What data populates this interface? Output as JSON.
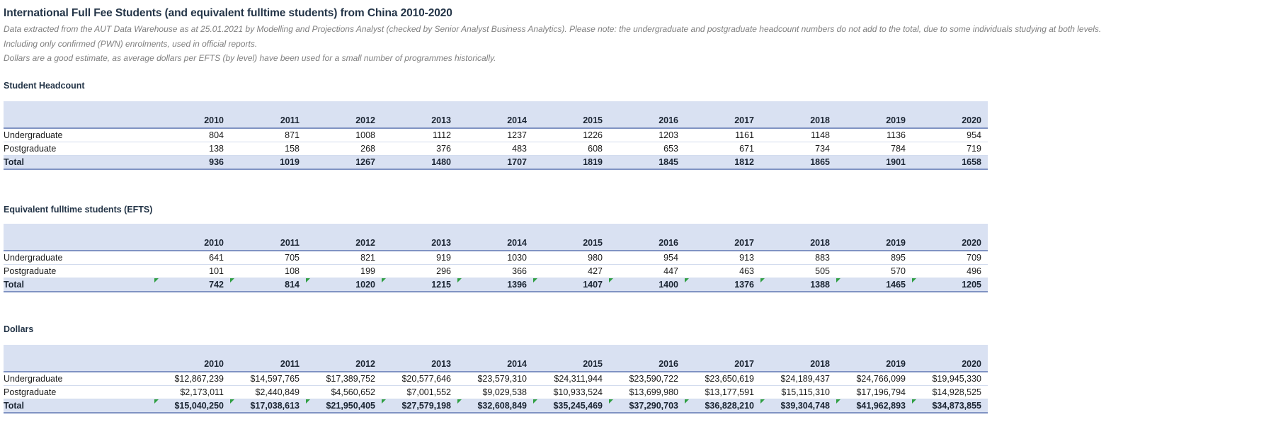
{
  "report": {
    "title": "International Full Fee Students (and equivalent fulltime students) from China 2010-2020",
    "note_lines": [
      "Data extracted from the AUT Data Warehouse as at 25.01.2021 by Modelling and Projections Analyst (checked by Senior Analyst Business Analytics). Please note: the undergraduate and postgraduate headcount numbers do not add to the total, due to some individuals studying at both levels.",
      "Including only confirmed (PWN) enrolments, used in official reports.",
      "Dollars are a good estimate, as average dollars per EFTS (by level) have been used for a small number of programmes historically."
    ]
  },
  "years": [
    "2010",
    "2011",
    "2012",
    "2013",
    "2014",
    "2015",
    "2016",
    "2017",
    "2018",
    "2019",
    "2020"
  ],
  "sections": [
    {
      "heading": "Student Headcount",
      "rows": [
        {
          "label": "Undergraduate",
          "total": false,
          "flags": false,
          "values": [
            "804",
            "871",
            "1008",
            "1112",
            "1237",
            "1226",
            "1203",
            "1161",
            "1148",
            "1136",
            "954"
          ]
        },
        {
          "label": "Postgraduate",
          "total": false,
          "flags": false,
          "values": [
            "138",
            "158",
            "268",
            "376",
            "483",
            "608",
            "653",
            "671",
            "734",
            "784",
            "719"
          ]
        },
        {
          "label": "Total",
          "total": true,
          "flags": false,
          "values": [
            "936",
            "1019",
            "1267",
            "1480",
            "1707",
            "1819",
            "1845",
            "1812",
            "1865",
            "1901",
            "1658"
          ]
        }
      ]
    },
    {
      "heading": "Equivalent fulltime students (EFTS)",
      "rows": [
        {
          "label": "Undergraduate",
          "total": false,
          "flags": false,
          "values": [
            "641",
            "705",
            "821",
            "919",
            "1030",
            "980",
            "954",
            "913",
            "883",
            "895",
            "709"
          ]
        },
        {
          "label": "Postgraduate",
          "total": false,
          "flags": false,
          "values": [
            "101",
            "108",
            "199",
            "296",
            "366",
            "427",
            "447",
            "463",
            "505",
            "570",
            "496"
          ]
        },
        {
          "label": "Total",
          "total": true,
          "flags": true,
          "values": [
            "742",
            "814",
            "1020",
            "1215",
            "1396",
            "1407",
            "1400",
            "1376",
            "1388",
            "1465",
            "1205"
          ]
        }
      ]
    },
    {
      "heading": "Dollars",
      "rows": [
        {
          "label": "Undergraduate",
          "total": false,
          "flags": false,
          "values": [
            "$12,867,239",
            "$14,597,765",
            "$17,389,752",
            "$20,577,646",
            "$23,579,310",
            "$24,311,944",
            "$23,590,722",
            "$23,650,619",
            "$24,189,437",
            "$24,766,099",
            "$19,945,330"
          ]
        },
        {
          "label": "Postgraduate",
          "total": false,
          "flags": false,
          "values": [
            "$2,173,011",
            "$2,440,849",
            "$4,560,652",
            "$7,001,552",
            "$9,029,538",
            "$10,933,524",
            "$13,699,980",
            "$13,177,591",
            "$15,115,310",
            "$17,196,794",
            "$14,928,525"
          ]
        },
        {
          "label": "Total",
          "total": true,
          "flags": true,
          "values": [
            "$15,040,250",
            "$17,038,613",
            "$21,950,405",
            "$27,579,198",
            "$32,608,849",
            "$35,245,469",
            "$37,290,703",
            "$36,828,210",
            "$39,304,748",
            "$41,962,893",
            "$34,873,855"
          ]
        }
      ]
    }
  ],
  "colors": {
    "header_band": "#D9E1F2",
    "table_border": "#8093C3",
    "row_separator": "#d3dcee",
    "heading_text": "#233447",
    "note_text": "#808080",
    "flag_green": "#2E9E41"
  },
  "layout": {
    "label_col_width": "213",
    "year_col_width": "107"
  }
}
